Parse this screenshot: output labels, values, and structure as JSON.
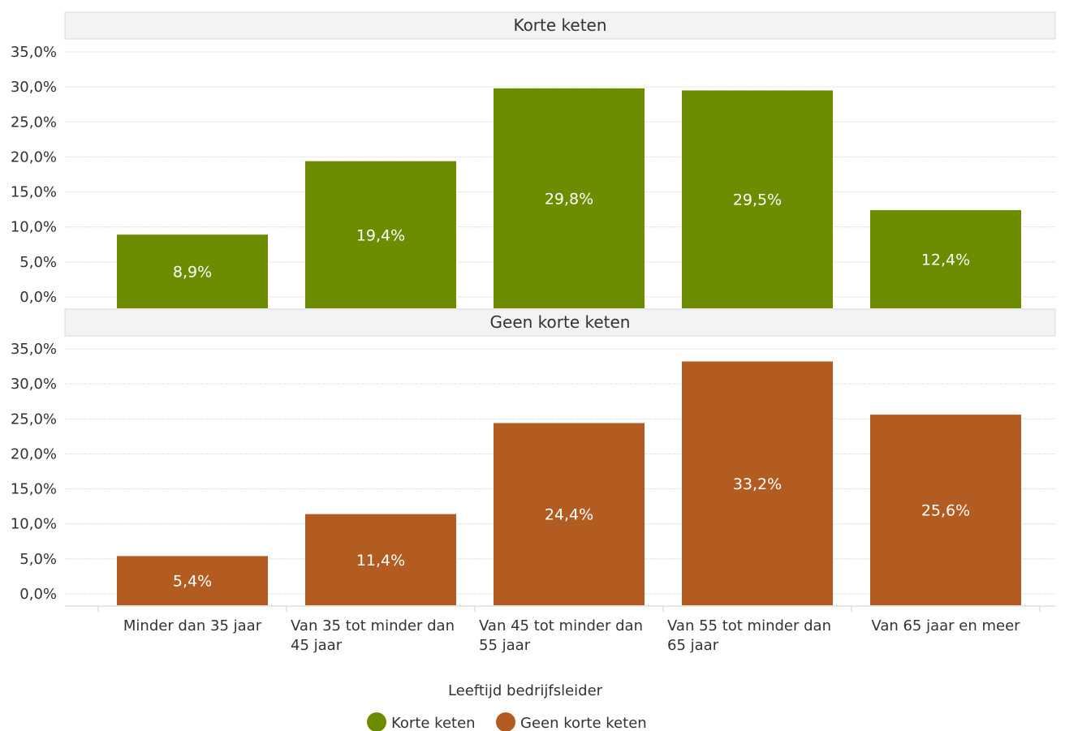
{
  "chart_data": {
    "type": "bar",
    "layout": "faceted-vertical",
    "categories": [
      [
        "Minder dan 35 jaar"
      ],
      [
        "Van 35 tot minder dan",
        "45 jaar"
      ],
      [
        "Van 45 tot minder dan",
        "55 jaar"
      ],
      [
        "Van 55 tot minder dan",
        "65 jaar"
      ],
      [
        "Van 65 jaar en meer"
      ]
    ],
    "xlabel": "Leeftijd bedrijfsleider",
    "ylim": [
      0,
      35
    ],
    "yticks": [
      "0,0%",
      "5,0%",
      "10,0%",
      "15,0%",
      "20,0%",
      "25,0%",
      "30,0%",
      "35,0%"
    ],
    "ytick_values": [
      0,
      5,
      10,
      15,
      20,
      25,
      30,
      35
    ],
    "grid": true,
    "legend_position": "bottom-center",
    "panels": [
      {
        "title": "Korte keten",
        "series": "Korte keten",
        "color": "#6e8c00",
        "values": [
          8.9,
          19.4,
          29.8,
          29.5,
          12.4
        ],
        "labels": [
          "8,9%",
          "19,4%",
          "29,8%",
          "29,5%",
          "12,4%"
        ]
      },
      {
        "title": "Geen korte keten",
        "series": "Geen korte keten",
        "color": "#b35c22",
        "values": [
          5.4,
          11.4,
          24.4,
          33.2,
          25.6
        ],
        "labels": [
          "5,4%",
          "11,4%",
          "24,4%",
          "33,2%",
          "25,6%"
        ]
      }
    ],
    "legend": [
      {
        "name": "Korte keten",
        "color": "#6e8c00"
      },
      {
        "name": "Geen korte keten",
        "color": "#b35c22"
      }
    ]
  }
}
